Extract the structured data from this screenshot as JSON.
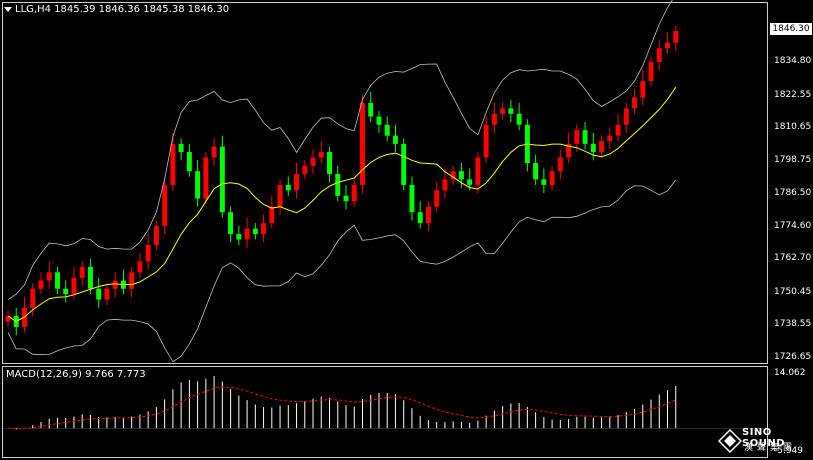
{
  "header": {
    "symbol_text": "LLG,H4",
    "ohlc_text": "1845.39 1846.36 1845.38 1846.30"
  },
  "price_axis": {
    "current_price": "1846.30",
    "ticks": [
      "1834.80",
      "1822.55",
      "1810.65",
      "1798.75",
      "1786.50",
      "1774.60",
      "1762.70",
      "1750.45",
      "1738.55",
      "1726.65"
    ],
    "min": 1726.65,
    "max": 1846.3
  },
  "macd": {
    "label": "MACD(12,26,9) 9.766 7.773",
    "axis_top": "14.062",
    "axis_bottom": "-5.949"
  },
  "logo": {
    "brand": "SINO SOUND",
    "cn": "漢聲集團",
    "brand_overlap_tick": "0.00"
  },
  "colors": {
    "bull": "#ff0000",
    "bear": "#00ff00",
    "ma": "#ffff00",
    "bands": "#c0c0c0",
    "macd_hist": "#ffffff",
    "macd_signal": "#ff0000"
  },
  "chart_data": {
    "type": "candlestick",
    "symbol": "LLG",
    "timeframe": "H4",
    "closes": [
      1742,
      1738,
      1745,
      1752,
      1755,
      1758,
      1752,
      1750,
      1756,
      1760,
      1752,
      1748,
      1752,
      1755,
      1752,
      1758,
      1762,
      1768,
      1775,
      1790,
      1805,
      1802,
      1795,
      1785,
      1800,
      1804,
      1780,
      1772,
      1770,
      1774,
      1772,
      1776,
      1782,
      1790,
      1788,
      1794,
      1797,
      1800,
      1802,
      1794,
      1786,
      1784,
      1790,
      1820,
      1815,
      1812,
      1808,
      1805,
      1790,
      1780,
      1776,
      1782,
      1788,
      1792,
      1795,
      1792,
      1790,
      1800,
      1812,
      1816,
      1818,
      1816,
      1812,
      1798,
      1792,
      1790,
      1795,
      1800,
      1805,
      1810,
      1805,
      1802,
      1806,
      1808,
      1812,
      1818,
      1822,
      1828,
      1835,
      1840,
      1842,
      1846.3
    ]
  }
}
